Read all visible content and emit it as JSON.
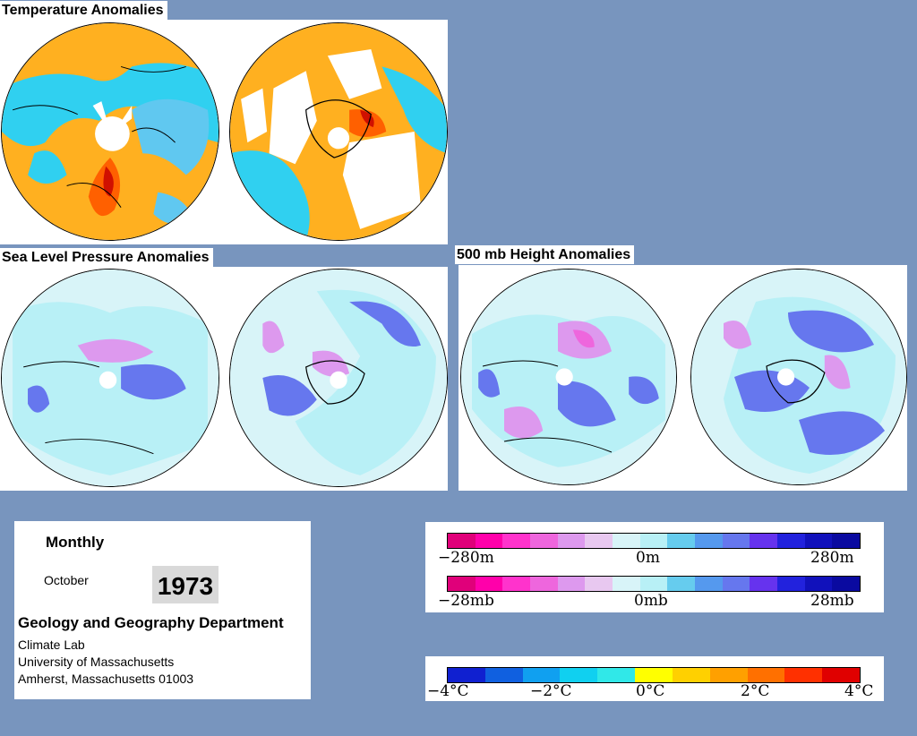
{
  "titles": {
    "temperature": "Temperature Anomalies",
    "slp": "Sea Level Pressure Anomalies",
    "height": "500 mb Height Anomalies"
  },
  "info": {
    "period": "Monthly",
    "month": "October",
    "year": "1973",
    "department": "Geology and Geography Department",
    "lab": "Climate Lab",
    "university": "University of Massachusetts",
    "address": "Amherst, Massachusetts 01003"
  },
  "legend_height": {
    "labels": [
      "−280m",
      "0m",
      "280m"
    ]
  },
  "legend_pressure": {
    "labels": [
      "−28mb",
      "0mb",
      "28mb"
    ]
  },
  "legend_temp": {
    "labels": [
      "−4°C",
      "−2°C",
      "0°C",
      "2°C",
      "4°C"
    ]
  },
  "colors": {
    "background": "#7895be",
    "anomaly_scale": [
      "#e0007a",
      "#ff00aa",
      "#ff33cc",
      "#ee66dd",
      "#dd99ee",
      "#e8c8f0",
      "#d8f4f8",
      "#b8f0f6",
      "#66ccee",
      "#5599ee",
      "#6677ee",
      "#6633ee",
      "#2222dd",
      "#1111bb",
      "#0a0aa0"
    ],
    "temp_scale": [
      "#1020d0",
      "#1060e0",
      "#10a0f0",
      "#10d0f0",
      "#30e8e8",
      "#ffff00",
      "#ffd000",
      "#ffa000",
      "#ff7000",
      "#ff3000",
      "#e00000"
    ]
  }
}
